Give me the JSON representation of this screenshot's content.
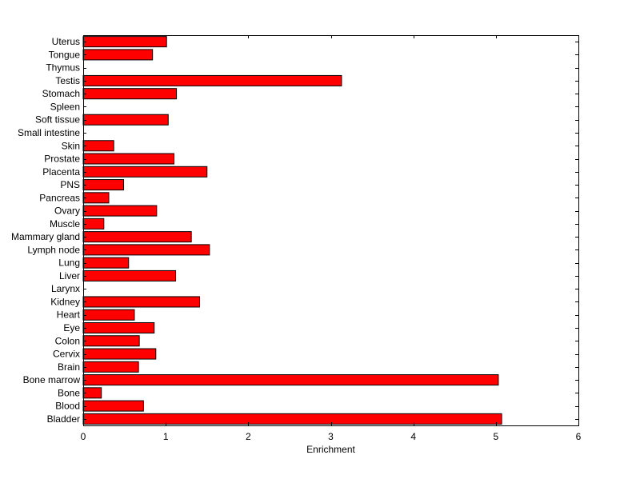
{
  "chart_data": {
    "type": "bar",
    "orientation": "horizontal",
    "categories": [
      "Bladder",
      "Blood",
      "Bone",
      "Bone marrow",
      "Brain",
      "Cervix",
      "Colon",
      "Eye",
      "Heart",
      "Kidney",
      "Larynx",
      "Liver",
      "Lung",
      "Lymph node",
      "Mammary gland",
      "Muscle",
      "Ovary",
      "Pancreas",
      "PNS",
      "Placenta",
      "Prostate",
      "Skin",
      "Small intestine",
      "Soft tissue",
      "Spleen",
      "Stomach",
      "Testis",
      "Thymus",
      "Tongue",
      "Uterus"
    ],
    "values": [
      5.07,
      0.73,
      0.22,
      5.03,
      0.67,
      0.88,
      0.68,
      0.86,
      0.62,
      1.41,
      0,
      1.12,
      0.55,
      1.53,
      1.31,
      0.25,
      0.89,
      0.31,
      0.49,
      1.5,
      1.1,
      0.37,
      0,
      1.03,
      0,
      1.13,
      3.13,
      0,
      0.84,
      1.01
    ],
    "title": "",
    "xlabel": "Enrichment",
    "ylabel": "",
    "xlim": [
      0,
      6
    ],
    "xticks": [
      0,
      1,
      2,
      3,
      4,
      5,
      6
    ],
    "bar_color": "#ff0000",
    "grid": false,
    "legend": "none"
  }
}
